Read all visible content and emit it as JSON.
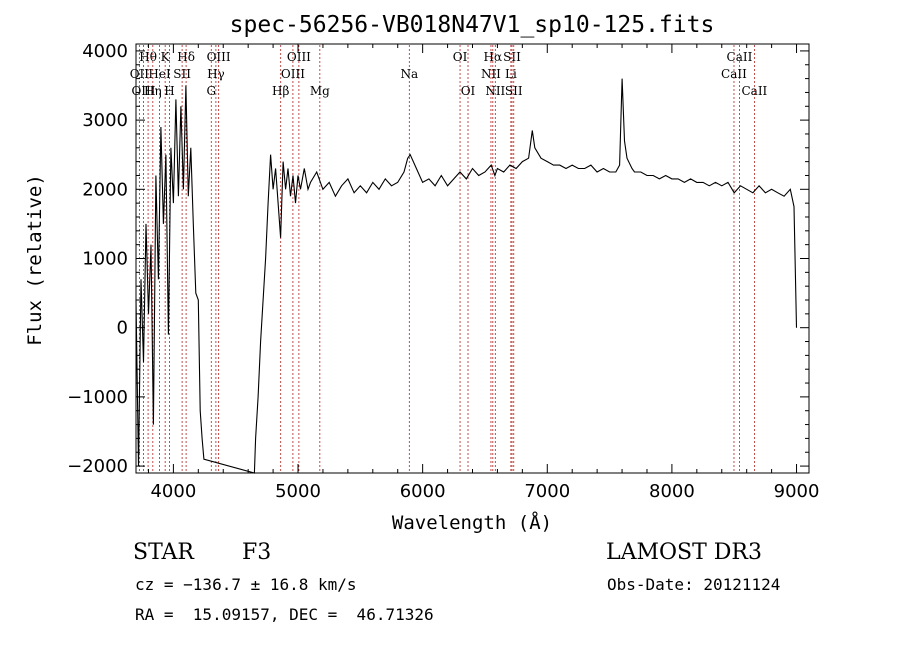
{
  "chart_data": {
    "type": "line",
    "title": "spec-56256-VB018N47V1_sp10-125.fits",
    "xlabel": "Wavelength (Å)",
    "ylabel": "Flux (relative)",
    "xlim": [
      3700,
      9100
    ],
    "ylim": [
      -2100,
      4100
    ],
    "x_ticks": [
      4000,
      5000,
      6000,
      7000,
      8000,
      9000
    ],
    "y_ticks": [
      -2000,
      -1000,
      0,
      1000,
      2000,
      3000,
      4000
    ],
    "grid": false,
    "series_color": "#000000",
    "line_marker_color": "#b22222",
    "spectrum": [
      [
        3700,
        400
      ],
      [
        3720,
        -2000
      ],
      [
        3740,
        700
      ],
      [
        3760,
        -500
      ],
      [
        3780,
        1500
      ],
      [
        3800,
        200
      ],
      [
        3820,
        1200
      ],
      [
        3840,
        -1400
      ],
      [
        3860,
        2200
      ],
      [
        3880,
        700
      ],
      [
        3900,
        2900
      ],
      [
        3920,
        1500
      ],
      [
        3940,
        2500
      ],
      [
        3960,
        -100
      ],
      [
        3980,
        2600
      ],
      [
        4000,
        1800
      ],
      [
        4020,
        3300
      ],
      [
        4040,
        1900
      ],
      [
        4060,
        3200
      ],
      [
        4080,
        2000
      ],
      [
        4100,
        3500
      ],
      [
        4120,
        1900
      ],
      [
        4140,
        2600
      ],
      [
        4160,
        1500
      ],
      [
        4180,
        500
      ],
      [
        4200,
        400
      ],
      [
        4215,
        -1200
      ],
      [
        4230,
        -1600
      ],
      [
        4245,
        -1900
      ],
      [
        4650,
        -2100
      ],
      [
        4660,
        -1600
      ],
      [
        4680,
        -1000
      ],
      [
        4700,
        -200
      ],
      [
        4720,
        400
      ],
      [
        4740,
        1000
      ],
      [
        4760,
        1800
      ],
      [
        4780,
        2500
      ],
      [
        4800,
        2000
      ],
      [
        4820,
        2300
      ],
      [
        4840,
        1800
      ],
      [
        4860,
        1300
      ],
      [
        4880,
        2400
      ],
      [
        4900,
        2000
      ],
      [
        4920,
        2300
      ],
      [
        4940,
        1900
      ],
      [
        4960,
        2200
      ],
      [
        4980,
        1800
      ],
      [
        5000,
        2200
      ],
      [
        5020,
        2000
      ],
      [
        5050,
        2300
      ],
      [
        5080,
        2000
      ],
      [
        5100,
        2100
      ],
      [
        5150,
        2250
      ],
      [
        5200,
        2000
      ],
      [
        5250,
        2100
      ],
      [
        5300,
        1900
      ],
      [
        5350,
        2050
      ],
      [
        5400,
        2150
      ],
      [
        5450,
        1950
      ],
      [
        5500,
        2050
      ],
      [
        5550,
        1950
      ],
      [
        5600,
        2100
      ],
      [
        5650,
        2000
      ],
      [
        5700,
        2150
      ],
      [
        5750,
        2050
      ],
      [
        5800,
        2100
      ],
      [
        5850,
        2250
      ],
      [
        5880,
        2450
      ],
      [
        5900,
        2500
      ],
      [
        5950,
        2300
      ],
      [
        6000,
        2100
      ],
      [
        6050,
        2150
      ],
      [
        6100,
        2050
      ],
      [
        6150,
        2200
      ],
      [
        6200,
        2050
      ],
      [
        6250,
        2150
      ],
      [
        6300,
        2250
      ],
      [
        6350,
        2150
      ],
      [
        6400,
        2300
      ],
      [
        6450,
        2200
      ],
      [
        6500,
        2250
      ],
      [
        6550,
        2350
      ],
      [
        6580,
        2200
      ],
      [
        6600,
        2300
      ],
      [
        6650,
        2250
      ],
      [
        6700,
        2350
      ],
      [
        6750,
        2300
      ],
      [
        6800,
        2400
      ],
      [
        6850,
        2450
      ],
      [
        6880,
        2850
      ],
      [
        6900,
        2600
      ],
      [
        6950,
        2450
      ],
      [
        7000,
        2400
      ],
      [
        7050,
        2350
      ],
      [
        7100,
        2350
      ],
      [
        7150,
        2300
      ],
      [
        7200,
        2350
      ],
      [
        7250,
        2300
      ],
      [
        7300,
        2300
      ],
      [
        7350,
        2350
      ],
      [
        7400,
        2250
      ],
      [
        7450,
        2300
      ],
      [
        7500,
        2250
      ],
      [
        7550,
        2250
      ],
      [
        7580,
        2350
      ],
      [
        7600,
        3600
      ],
      [
        7620,
        2700
      ],
      [
        7640,
        2450
      ],
      [
        7680,
        2300
      ],
      [
        7700,
        2250
      ],
      [
        7750,
        2250
      ],
      [
        7800,
        2200
      ],
      [
        7850,
        2200
      ],
      [
        7900,
        2150
      ],
      [
        7950,
        2200
      ],
      [
        8000,
        2150
      ],
      [
        8050,
        2150
      ],
      [
        8100,
        2100
      ],
      [
        8150,
        2150
      ],
      [
        8200,
        2100
      ],
      [
        8250,
        2100
      ],
      [
        8300,
        2050
      ],
      [
        8350,
        2100
      ],
      [
        8400,
        2050
      ],
      [
        8450,
        2100
      ],
      [
        8500,
        1950
      ],
      [
        8550,
        2050
      ],
      [
        8600,
        2000
      ],
      [
        8650,
        1950
      ],
      [
        8700,
        2050
      ],
      [
        8750,
        1950
      ],
      [
        8800,
        2000
      ],
      [
        8850,
        1950
      ],
      [
        8900,
        1900
      ],
      [
        8950,
        2000
      ],
      [
        8980,
        1750
      ],
      [
        9000,
        0
      ]
    ],
    "line_markers": [
      {
        "label": "Hθ",
        "x": 3797,
        "row": 1
      },
      {
        "label": "OII",
        "x": 3727,
        "row": 2
      },
      {
        "label": "OIII",
        "x": 3760,
        "row": 3
      },
      {
        "label": "Hη",
        "x": 3835,
        "row": 3
      },
      {
        "label": "HeI",
        "x": 3889,
        "row": 2
      },
      {
        "label": "K",
        "x": 3934,
        "row": 1
      },
      {
        "label": "H",
        "x": 3969,
        "row": 3
      },
      {
        "label": "SII",
        "x": 4070,
        "row": 2
      },
      {
        "label": "Hδ",
        "x": 4102,
        "row": 1
      },
      {
        "label": "OIII",
        "x": 4363,
        "row": 1
      },
      {
        "label": "Hγ",
        "x": 4341,
        "row": 2
      },
      {
        "label": "G",
        "x": 4304,
        "row": 3
      },
      {
        "label": "Hβ",
        "x": 4861,
        "row": 3
      },
      {
        "label": "OIII",
        "x": 5007,
        "row": 1
      },
      {
        "label": "OIII",
        "x": 4959,
        "row": 2
      },
      {
        "label": "Mg",
        "x": 5175,
        "row": 3
      },
      {
        "label": "Na",
        "x": 5893,
        "row": 2
      },
      {
        "label": "OI",
        "x": 6300,
        "row": 1
      },
      {
        "label": "OI",
        "x": 6364,
        "row": 3
      },
      {
        "label": "Hα",
        "x": 6563,
        "row": 1
      },
      {
        "label": "NII",
        "x": 6548,
        "row": 2
      },
      {
        "label": "NII",
        "x": 6583,
        "row": 3
      },
      {
        "label": "SII",
        "x": 6717,
        "row": 1
      },
      {
        "label": "Li",
        "x": 6708,
        "row": 2
      },
      {
        "label": "SII",
        "x": 6731,
        "row": 3
      },
      {
        "label": "CaII",
        "x": 8542,
        "row": 1
      },
      {
        "label": "CaII",
        "x": 8498,
        "row": 2
      },
      {
        "label": "CaII",
        "x": 8662,
        "row": 3
      }
    ]
  },
  "footer": {
    "object_class": "STAR",
    "subclass": "F3",
    "survey": "LAMOST DR3",
    "velocity": "cz = −136.7 ± 16.8 km/s",
    "obs_date": "Obs-Date: 20121124",
    "coords": "RA =  15.09157, DEC =  46.71326"
  }
}
